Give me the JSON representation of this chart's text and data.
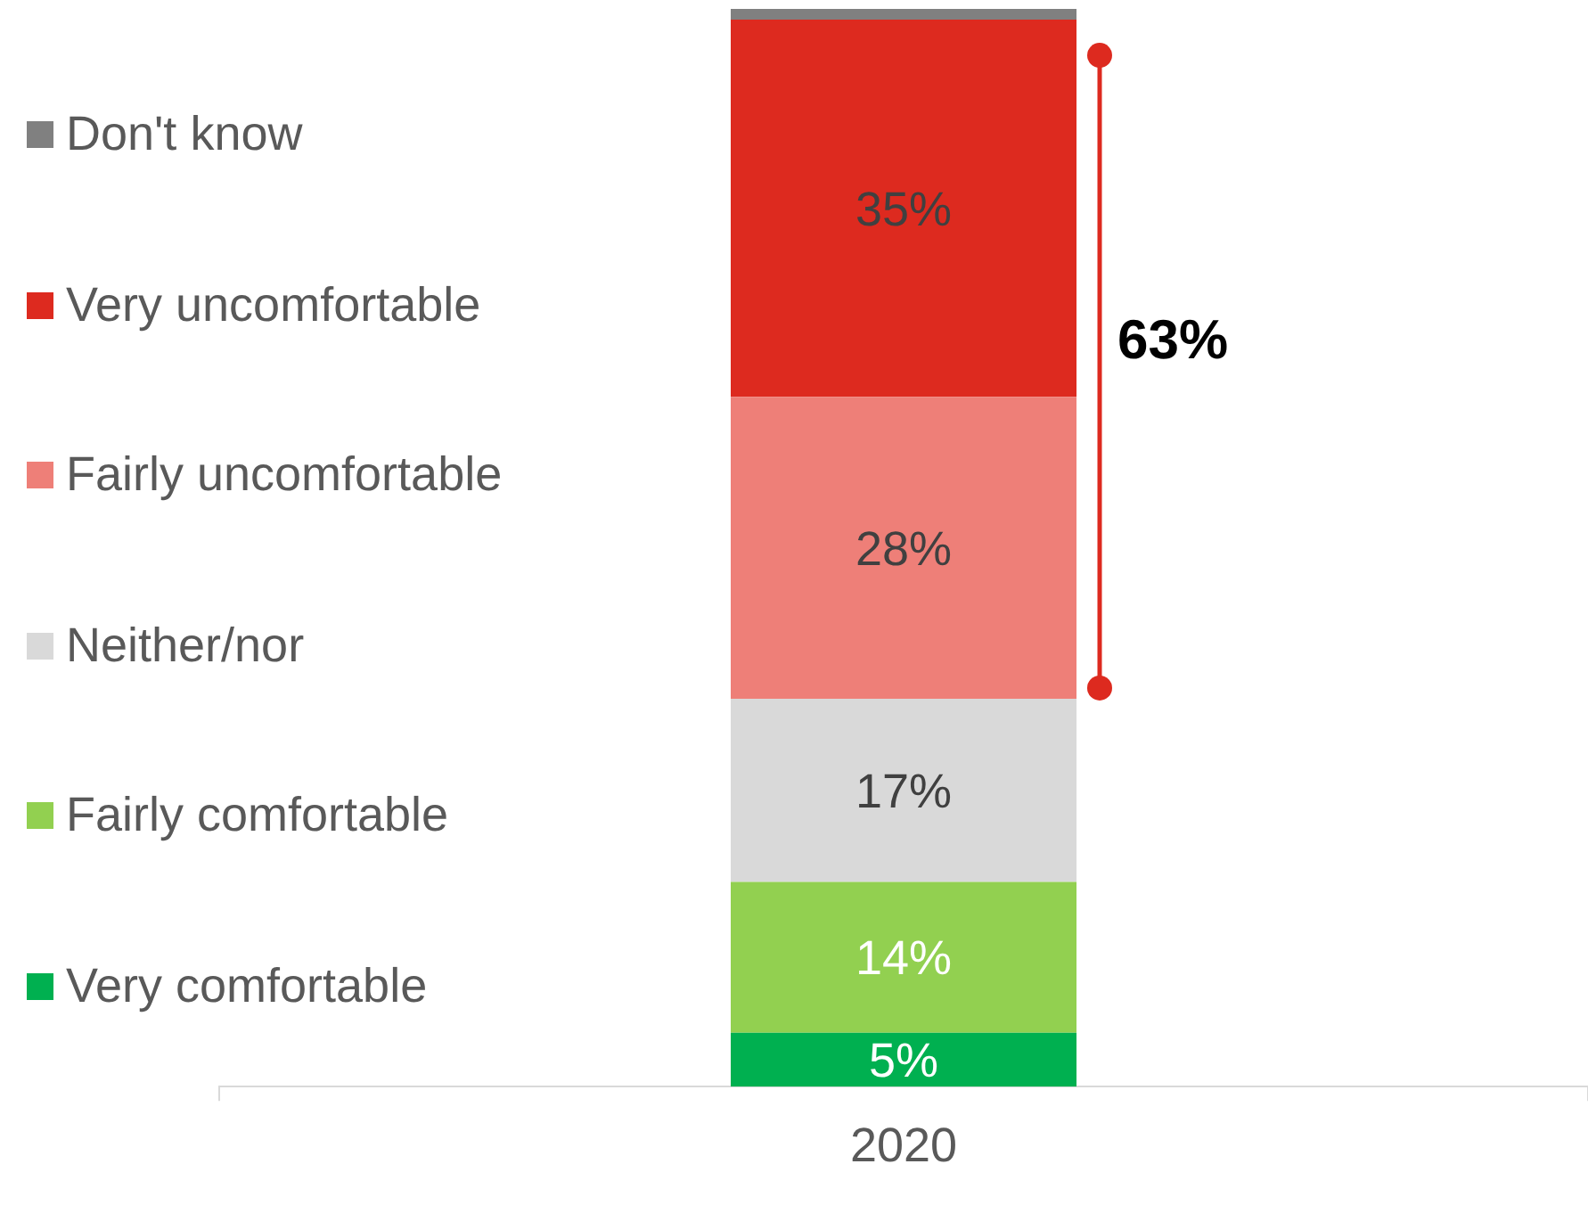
{
  "chart_data": {
    "type": "bar",
    "stacked": true,
    "categories": [
      "2020"
    ],
    "legend": "left",
    "series": [
      {
        "name": "Very comfortable",
        "color": "#00b050",
        "values": [
          5
        ],
        "value_labels": [
          "5%"
        ]
      },
      {
        "name": "Fairly comfortable",
        "color": "#92d050",
        "values": [
          14
        ],
        "value_labels": [
          "14%"
        ]
      },
      {
        "name": "Neither/nor",
        "color": "#d9d9d9",
        "values": [
          17
        ],
        "value_labels": [
          "17%"
        ]
      },
      {
        "name": "Fairly uncomfortable",
        "color": "#ee7f78",
        "values": [
          28
        ],
        "value_labels": [
          "28%"
        ]
      },
      {
        "name": "Very uncomfortable",
        "color": "#dd2a1f",
        "values": [
          35
        ],
        "value_labels": [
          "35%"
        ]
      },
      {
        "name": "Don't know",
        "color": "#808080",
        "values": [
          1
        ],
        "value_labels": [
          null
        ]
      }
    ],
    "annotations": [
      "63%"
    ]
  }
}
